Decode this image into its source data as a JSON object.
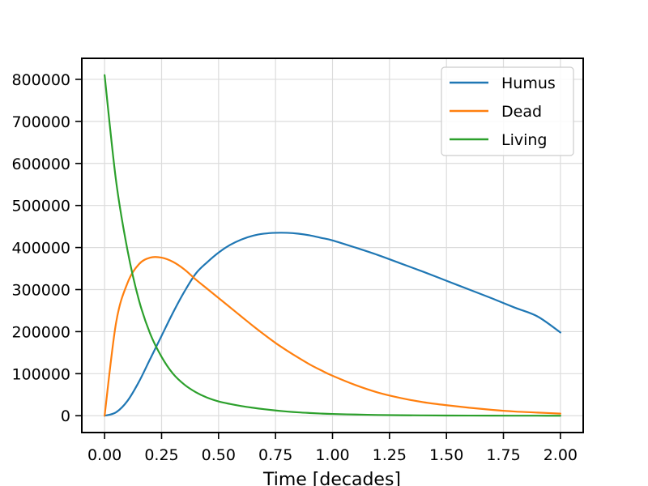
{
  "chart_data": {
    "type": "line",
    "title": "",
    "xlabel": "Time [decades]",
    "ylabel": "",
    "xlim": [
      -0.1,
      2.1
    ],
    "ylim": [
      -40000,
      850000
    ],
    "grid": true,
    "legend_position": "top-right",
    "x_ticks": [
      0.0,
      0.25,
      0.5,
      0.75,
      1.0,
      1.25,
      1.5,
      1.75,
      2.0
    ],
    "x_tick_labels": [
      "0.00",
      "0.25",
      "0.50",
      "0.75",
      "1.00",
      "1.25",
      "1.50",
      "1.75",
      "2.00"
    ],
    "y_ticks": [
      0,
      100000,
      200000,
      300000,
      400000,
      500000,
      600000,
      700000,
      800000
    ],
    "y_tick_labels": [
      "0",
      "100000",
      "200000",
      "300000",
      "400000",
      "500000",
      "600000",
      "700000",
      "800000"
    ],
    "x": [
      0.0,
      0.05,
      0.1,
      0.15,
      0.2,
      0.25,
      0.3,
      0.35,
      0.4,
      0.45,
      0.5,
      0.55,
      0.6,
      0.65,
      0.7,
      0.75,
      0.8,
      0.85,
      0.9,
      0.95,
      1.0,
      1.1,
      1.2,
      1.3,
      1.4,
      1.5,
      1.6,
      1.7,
      1.8,
      1.9,
      2.0
    ],
    "series": [
      {
        "name": "Humus",
        "color": "#1f77b4",
        "values": [
          0,
          8000,
          35000,
          80000,
          135000,
          190000,
          245000,
          295000,
          338000,
          365000,
          388000,
          406000,
          419000,
          428000,
          433000,
          435000,
          435000,
          433000,
          429000,
          423000,
          417000,
          400000,
          382000,
          362000,
          342000,
          321000,
          300000,
          279000,
          257000,
          236000,
          198000
        ]
      },
      {
        "name": "Dead",
        "color": "#ff7f0e",
        "values": [
          0,
          220000,
          315000,
          360000,
          376000,
          376000,
          366000,
          348000,
          324000,
          302000,
          280000,
          258000,
          236000,
          214000,
          193000,
          173000,
          155000,
          138000,
          122000,
          108000,
          95000,
          73000,
          55000,
          42000,
          32000,
          25000,
          19000,
          14000,
          10000,
          7500,
          5000
        ]
      },
      {
        "name": "Living",
        "color": "#2ca02c",
        "values": [
          810000,
          560000,
          395000,
          276000,
          195000,
          140000,
          100000,
          74000,
          56000,
          43000,
          34000,
          28000,
          23000,
          19000,
          15500,
          12500,
          10000,
          8000,
          6500,
          5200,
          4200,
          2800,
          1800,
          1200,
          800,
          500,
          300,
          200,
          100,
          50,
          0
        ]
      }
    ]
  }
}
